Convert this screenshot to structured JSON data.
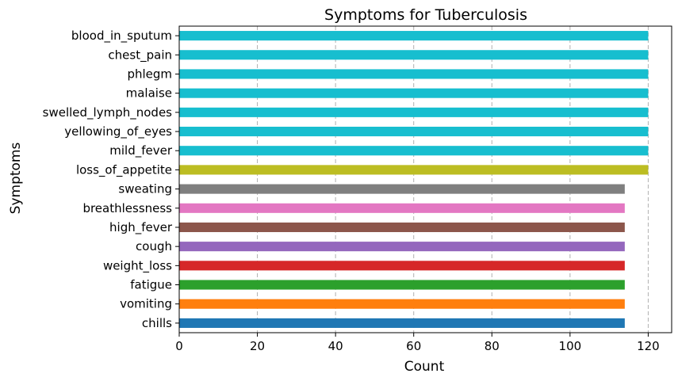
{
  "chart_data": {
    "type": "bar",
    "orientation": "horizontal",
    "title": "Symptoms for Tuberculosis",
    "xlabel": "Count",
    "ylabel": "Symptoms",
    "xlim": [
      0,
      126
    ],
    "xticks": [
      0,
      20,
      40,
      60,
      80,
      100,
      120
    ],
    "grid": "x-dashed",
    "categories": [
      "chills",
      "vomiting",
      "fatigue",
      "weight_loss",
      "cough",
      "high_fever",
      "breathlessness",
      "sweating",
      "loss_of_appetite",
      "mild_fever",
      "yellowing_of_eyes",
      "swelled_lymph_nodes",
      "malaise",
      "phlegm",
      "chest_pain",
      "blood_in_sputum"
    ],
    "values": [
      114,
      114,
      114,
      114,
      114,
      114,
      114,
      114,
      120,
      120,
      120,
      120,
      120,
      120,
      120,
      120
    ],
    "colors": [
      "#1f77b4",
      "#ff7f0e",
      "#2ca02c",
      "#d62728",
      "#9467bd",
      "#8c564b",
      "#e377c2",
      "#7f7f7f",
      "#bcbd22",
      "#17becf",
      "#17becf",
      "#17becf",
      "#17becf",
      "#17becf",
      "#17becf",
      "#17becf"
    ]
  }
}
